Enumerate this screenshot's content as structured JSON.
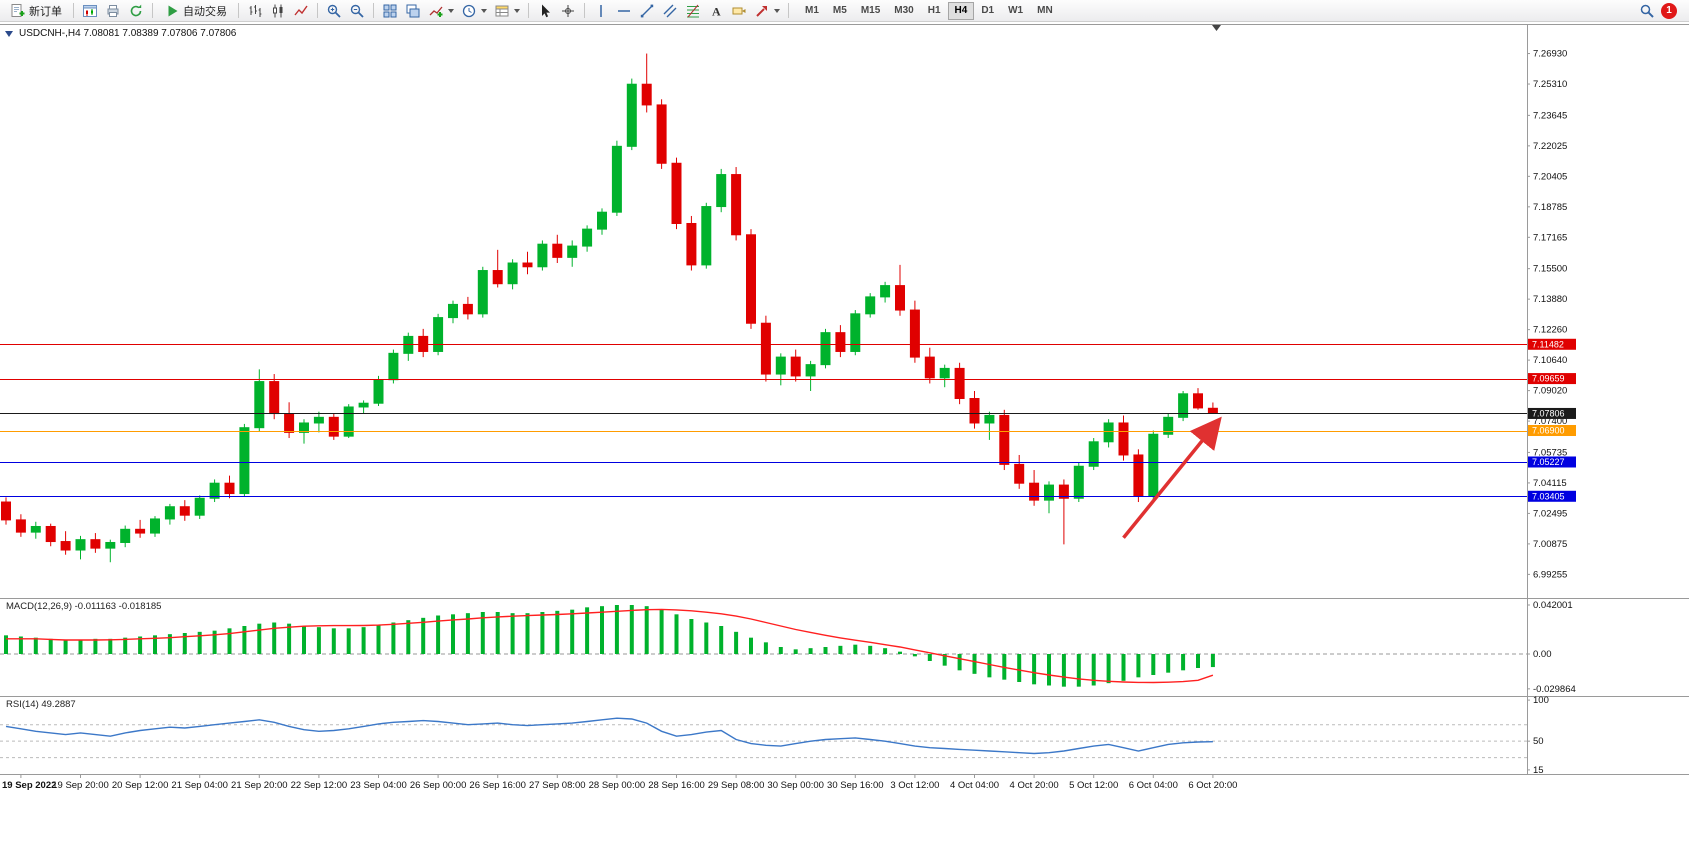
{
  "window": {
    "badge_count": "1"
  },
  "toolbar": {
    "new_order_label": "新订单",
    "auto_trading_label": "自动交易",
    "timeframes": [
      "M1",
      "M5",
      "M15",
      "M30",
      "H1",
      "H4",
      "D1",
      "W1",
      "MN"
    ],
    "active_timeframe": "H4"
  },
  "icons": {
    "new_order": "document-with-green-plus",
    "new_chart": "chart-window",
    "profiles": "printer",
    "refresh": "green-refresh-arrows",
    "auto_trading": "green-play-triangle",
    "bar_chart": "ohlc-bars",
    "candle_chart": "candlesticks",
    "line_chart": "zigzag-line",
    "zoom_in": "magnifier-plus",
    "zoom_out": "magnifier-minus",
    "tile_windows": "grid-2x2",
    "cascade_windows": "stacked-windows",
    "indicators": "chart-with-green-plus",
    "periods": "clock",
    "templates": "template-sheet",
    "cursor": "pointer-arrow",
    "crosshair": "crosshair",
    "vertical_line": "vertical-line",
    "horizontal_line": "horizontal-line",
    "trendline": "diagonal-line",
    "channel": "parallel-lines",
    "fibonacci": "fib-retracement-lines",
    "text": "letter-A",
    "text_label": "tag",
    "arrows": "red-arrow",
    "search": "magnifier",
    "notification": "red-circle-badge"
  },
  "chart": {
    "title_line": "USDCNH-,H4 7.08081 7.08389 7.07806 7.07806",
    "symbol": "USDCNH-",
    "period": "H4",
    "ohlc": {
      "open": "7.08081",
      "high": "7.08389",
      "low": "7.07806",
      "close": "7.07806"
    }
  },
  "chart_data": {
    "type": "candlestick",
    "title": "USDCNH-,H4",
    "ylim": [
      6.98,
      7.285
    ],
    "price_axis_labels": [
      "7.26930",
      "7.25310",
      "7.23645",
      "7.22025",
      "7.20405",
      "7.18785",
      "7.17165",
      "7.15500",
      "7.13880",
      "7.12260",
      "7.10640",
      "7.09020",
      "7.07400",
      "7.05735",
      "7.04115",
      "7.02495",
      "7.00875",
      "6.99255"
    ],
    "x_labels": [
      "19 Sep 2022",
      "19 Sep 20:00",
      "20 Sep 12:00",
      "21 Sep 04:00",
      "21 Sep 20:00",
      "22 Sep 12:00",
      "23 Sep 04:00",
      "26 Sep 00:00",
      "26 Sep 16:00",
      "27 Sep 08:00",
      "28 Sep 00:00",
      "28 Sep 16:00",
      "29 Sep 08:00",
      "30 Sep 00:00",
      "30 Sep 16:00",
      "3 Oct 12:00",
      "4 Oct 04:00",
      "4 Oct 20:00",
      "5 Oct 12:00",
      "6 Oct 04:00",
      "6 Oct 20:00"
    ],
    "bars_per_label": 4,
    "first_label_bar_index": 1,
    "colors": {
      "up": "#00b22c",
      "down": "#e00000",
      "current_line": "#1a1a1a",
      "axis_text": "#111111"
    },
    "candles": [
      [
        7.031,
        7.0335,
        7.019,
        7.0215
      ],
      [
        7.0215,
        7.0245,
        7.0125,
        7.015
      ],
      [
        7.015,
        7.0205,
        7.0115,
        7.018
      ],
      [
        7.018,
        7.0195,
        7.0075,
        7.01
      ],
      [
        7.01,
        7.0155,
        7.003,
        7.0055
      ],
      [
        7.0055,
        7.013,
        7.0005,
        7.011
      ],
      [
        7.011,
        7.0145,
        7.004,
        7.0065
      ],
      [
        7.0065,
        7.011,
        6.999,
        7.0095
      ],
      [
        7.0095,
        7.0185,
        7.007,
        7.0165
      ],
      [
        7.0165,
        7.0215,
        7.012,
        7.0145
      ],
      [
        7.0145,
        7.0235,
        7.0125,
        7.022
      ],
      [
        7.022,
        7.03,
        7.019,
        7.0285
      ],
      [
        7.0285,
        7.032,
        7.021,
        7.024
      ],
      [
        7.024,
        7.0345,
        7.022,
        7.033
      ],
      [
        7.033,
        7.043,
        7.031,
        7.041
      ],
      [
        7.041,
        7.045,
        7.033,
        7.0355
      ],
      [
        7.0355,
        7.0725,
        7.034,
        7.0705
      ],
      [
        7.0705,
        7.1015,
        7.0685,
        7.095
      ],
      [
        7.095,
        7.099,
        7.075,
        7.078
      ],
      [
        7.078,
        7.084,
        7.065,
        7.068
      ],
      [
        7.068,
        7.075,
        7.062,
        7.073
      ],
      [
        7.073,
        7.079,
        7.068,
        7.076
      ],
      [
        7.076,
        7.078,
        7.064,
        7.066
      ],
      [
        7.066,
        7.083,
        7.065,
        7.0815
      ],
      [
        7.0815,
        7.085,
        7.078,
        7.0835
      ],
      [
        7.0835,
        7.098,
        7.082,
        7.096
      ],
      [
        7.096,
        7.112,
        7.094,
        7.11
      ],
      [
        7.11,
        7.121,
        7.106,
        7.119
      ],
      [
        7.119,
        7.123,
        7.108,
        7.111
      ],
      [
        7.111,
        7.131,
        7.109,
        7.129
      ],
      [
        7.129,
        7.138,
        7.126,
        7.136
      ],
      [
        7.136,
        7.14,
        7.128,
        7.131
      ],
      [
        7.131,
        7.156,
        7.129,
        7.154
      ],
      [
        7.154,
        7.165,
        7.145,
        7.147
      ],
      [
        7.147,
        7.16,
        7.144,
        7.158
      ],
      [
        7.158,
        7.164,
        7.152,
        7.156
      ],
      [
        7.156,
        7.17,
        7.154,
        7.168
      ],
      [
        7.168,
        7.173,
        7.158,
        7.161
      ],
      [
        7.161,
        7.17,
        7.156,
        7.167
      ],
      [
        7.167,
        7.178,
        7.164,
        7.176
      ],
      [
        7.176,
        7.187,
        7.173,
        7.185
      ],
      [
        7.185,
        7.223,
        7.183,
        7.22
      ],
      [
        7.22,
        7.256,
        7.218,
        7.253
      ],
      [
        7.253,
        7.2693,
        7.238,
        7.242
      ],
      [
        7.242,
        7.245,
        7.208,
        7.211
      ],
      [
        7.211,
        7.214,
        7.176,
        7.179
      ],
      [
        7.179,
        7.183,
        7.154,
        7.157
      ],
      [
        7.157,
        7.19,
        7.155,
        7.188
      ],
      [
        7.188,
        7.208,
        7.185,
        7.205
      ],
      [
        7.205,
        7.209,
        7.17,
        7.173
      ],
      [
        7.173,
        7.176,
        7.123,
        7.126
      ],
      [
        7.126,
        7.13,
        7.095,
        7.099
      ],
      [
        7.099,
        7.11,
        7.093,
        7.108
      ],
      [
        7.108,
        7.112,
        7.095,
        7.098
      ],
      [
        7.098,
        7.106,
        7.09,
        7.104
      ],
      [
        7.104,
        7.123,
        7.102,
        7.121
      ],
      [
        7.121,
        7.125,
        7.108,
        7.111
      ],
      [
        7.111,
        7.133,
        7.109,
        7.131
      ],
      [
        7.131,
        7.142,
        7.129,
        7.14
      ],
      [
        7.14,
        7.148,
        7.137,
        7.146
      ],
      [
        7.146,
        7.157,
        7.13,
        7.133
      ],
      [
        7.133,
        7.138,
        7.105,
        7.108
      ],
      [
        7.108,
        7.113,
        7.094,
        7.097
      ],
      [
        7.097,
        7.104,
        7.092,
        7.102
      ],
      [
        7.102,
        7.105,
        7.083,
        7.086
      ],
      [
        7.086,
        7.09,
        7.07,
        7.073
      ],
      [
        7.073,
        7.079,
        7.064,
        7.077
      ],
      [
        7.077,
        7.08,
        7.048,
        7.051
      ],
      [
        7.051,
        7.056,
        7.038,
        7.041
      ],
      [
        7.041,
        7.048,
        7.029,
        7.032
      ],
      [
        7.032,
        7.042,
        7.025,
        7.04
      ],
      [
        7.04,
        7.043,
        7.0085,
        7.033
      ],
      [
        7.033,
        7.052,
        7.031,
        7.05
      ],
      [
        7.05,
        7.065,
        7.048,
        7.063
      ],
      [
        7.063,
        7.075,
        7.06,
        7.073
      ],
      [
        7.073,
        7.077,
        7.053,
        7.056
      ],
      [
        7.056,
        7.059,
        7.031,
        7.034
      ],
      [
        7.034,
        7.069,
        7.032,
        7.067
      ],
      [
        7.067,
        7.078,
        7.065,
        7.076
      ],
      [
        7.076,
        7.09,
        7.074,
        7.0885
      ],
      [
        7.0885,
        7.0915,
        7.08,
        7.081
      ],
      [
        7.08081,
        7.08389,
        7.07806,
        7.07806
      ]
    ],
    "hlines": [
      {
        "price": 7.11482,
        "label": "7.11482",
        "color": "#e00000"
      },
      {
        "price": 7.09659,
        "label": "7.09659",
        "color": "#e00000"
      },
      {
        "price": 7.069,
        "label": "7.06900",
        "color": "#ff9c00"
      },
      {
        "price": 7.05227,
        "label": "7.05227",
        "color": "#0000e0"
      },
      {
        "price": 7.03405,
        "label": "7.03405",
        "color": "#0000e0"
      }
    ],
    "current_price": {
      "price": 7.07806,
      "label": "7.07806",
      "color": "#1a1a1a"
    },
    "trend_arrow": {
      "from_bar": 75,
      "from_price": 7.012,
      "to_bar": 81.3,
      "to_price": 7.0735,
      "color": "#e03131"
    },
    "indicators": [
      {
        "name": "MACD",
        "title": "MACD(12,26,9) -0.011163 -0.018185",
        "ylim": [
          -0.036,
          0.048
        ],
        "axis_labels": [
          {
            "value": 0.042001,
            "label": "0.042001"
          },
          {
            "value": 0,
            "label": "0.00"
          },
          {
            "value": -0.029864,
            "label": "-0.029864"
          }
        ],
        "colors": {
          "histogram": "#00b22c",
          "signal": "#ff2020"
        },
        "histogram": [
          0.016,
          0.015,
          0.014,
          0.013,
          0.012,
          0.012,
          0.013,
          0.013,
          0.014,
          0.015,
          0.016,
          0.017,
          0.018,
          0.019,
          0.02,
          0.022,
          0.024,
          0.026,
          0.027,
          0.026,
          0.024,
          0.023,
          0.022,
          0.022,
          0.023,
          0.025,
          0.027,
          0.029,
          0.031,
          0.033,
          0.034,
          0.035,
          0.036,
          0.036,
          0.035,
          0.035,
          0.036,
          0.037,
          0.038,
          0.04,
          0.041,
          0.042,
          0.042,
          0.041,
          0.038,
          0.034,
          0.03,
          0.027,
          0.024,
          0.019,
          0.014,
          0.01,
          0.006,
          0.004,
          0.005,
          0.006,
          0.007,
          0.008,
          0.007,
          0.005,
          0.002,
          -0.002,
          -0.006,
          -0.01,
          -0.014,
          -0.017,
          -0.02,
          -0.022,
          -0.024,
          -0.026,
          -0.027,
          -0.028,
          -0.028,
          -0.027,
          -0.025,
          -0.023,
          -0.02,
          -0.018,
          -0.016,
          -0.014,
          -0.012,
          -0.0112
        ],
        "signal": [
          0.013,
          0.013,
          0.013,
          0.0125,
          0.012,
          0.012,
          0.012,
          0.0122,
          0.0125,
          0.013,
          0.0135,
          0.014,
          0.0148,
          0.0156,
          0.0165,
          0.0175,
          0.019,
          0.0205,
          0.022,
          0.023,
          0.0238,
          0.0242,
          0.0243,
          0.0243,
          0.0244,
          0.0248,
          0.0255,
          0.0263,
          0.0272,
          0.0282,
          0.0292,
          0.03,
          0.031,
          0.0318,
          0.0324,
          0.0329,
          0.0334,
          0.0339,
          0.0345,
          0.0351,
          0.0358,
          0.0366,
          0.0374,
          0.038,
          0.0382,
          0.0378,
          0.037,
          0.0358,
          0.0345,
          0.0325,
          0.03,
          0.027,
          0.024,
          0.021,
          0.0185,
          0.016,
          0.0138,
          0.0118,
          0.01,
          0.008,
          0.006,
          0.0035,
          0.001,
          -0.0015,
          -0.004,
          -0.0065,
          -0.009,
          -0.0115,
          -0.0138,
          -0.016,
          -0.018,
          -0.0198,
          -0.0213,
          -0.0225,
          -0.0234,
          -0.024,
          -0.0243,
          -0.0244,
          -0.0242,
          -0.0237,
          -0.0225,
          -0.0182
        ]
      },
      {
        "name": "RSI",
        "title": "RSI(14) 49.2887",
        "ylim": [
          10,
          105
        ],
        "axis_labels": [
          {
            "value": 100,
            "label": "100"
          },
          {
            "value": 50,
            "label": "50"
          },
          {
            "value": 15,
            "label": "15"
          }
        ],
        "levels": [
          70,
          50,
          30
        ],
        "colors": {
          "line": "#3c78c8"
        },
        "values": [
          68,
          65,
          62,
          60,
          58,
          60,
          58,
          56,
          60,
          63,
          65,
          67,
          66,
          68,
          70,
          72,
          74,
          76,
          73,
          68,
          64,
          62,
          63,
          65,
          68,
          71,
          73,
          74,
          75,
          74,
          72,
          70,
          71,
          72,
          70,
          69,
          70,
          71,
          72,
          74,
          76,
          78,
          77,
          72,
          62,
          56,
          58,
          61,
          63,
          52,
          47,
          45,
          44,
          47,
          50,
          52,
          53,
          54,
          52,
          50,
          47,
          44,
          42,
          41,
          40,
          39,
          38,
          37,
          36,
          35,
          36,
          38,
          41,
          44,
          46,
          42,
          38,
          42,
          46,
          48,
          49,
          49.29
        ]
      }
    ]
  }
}
